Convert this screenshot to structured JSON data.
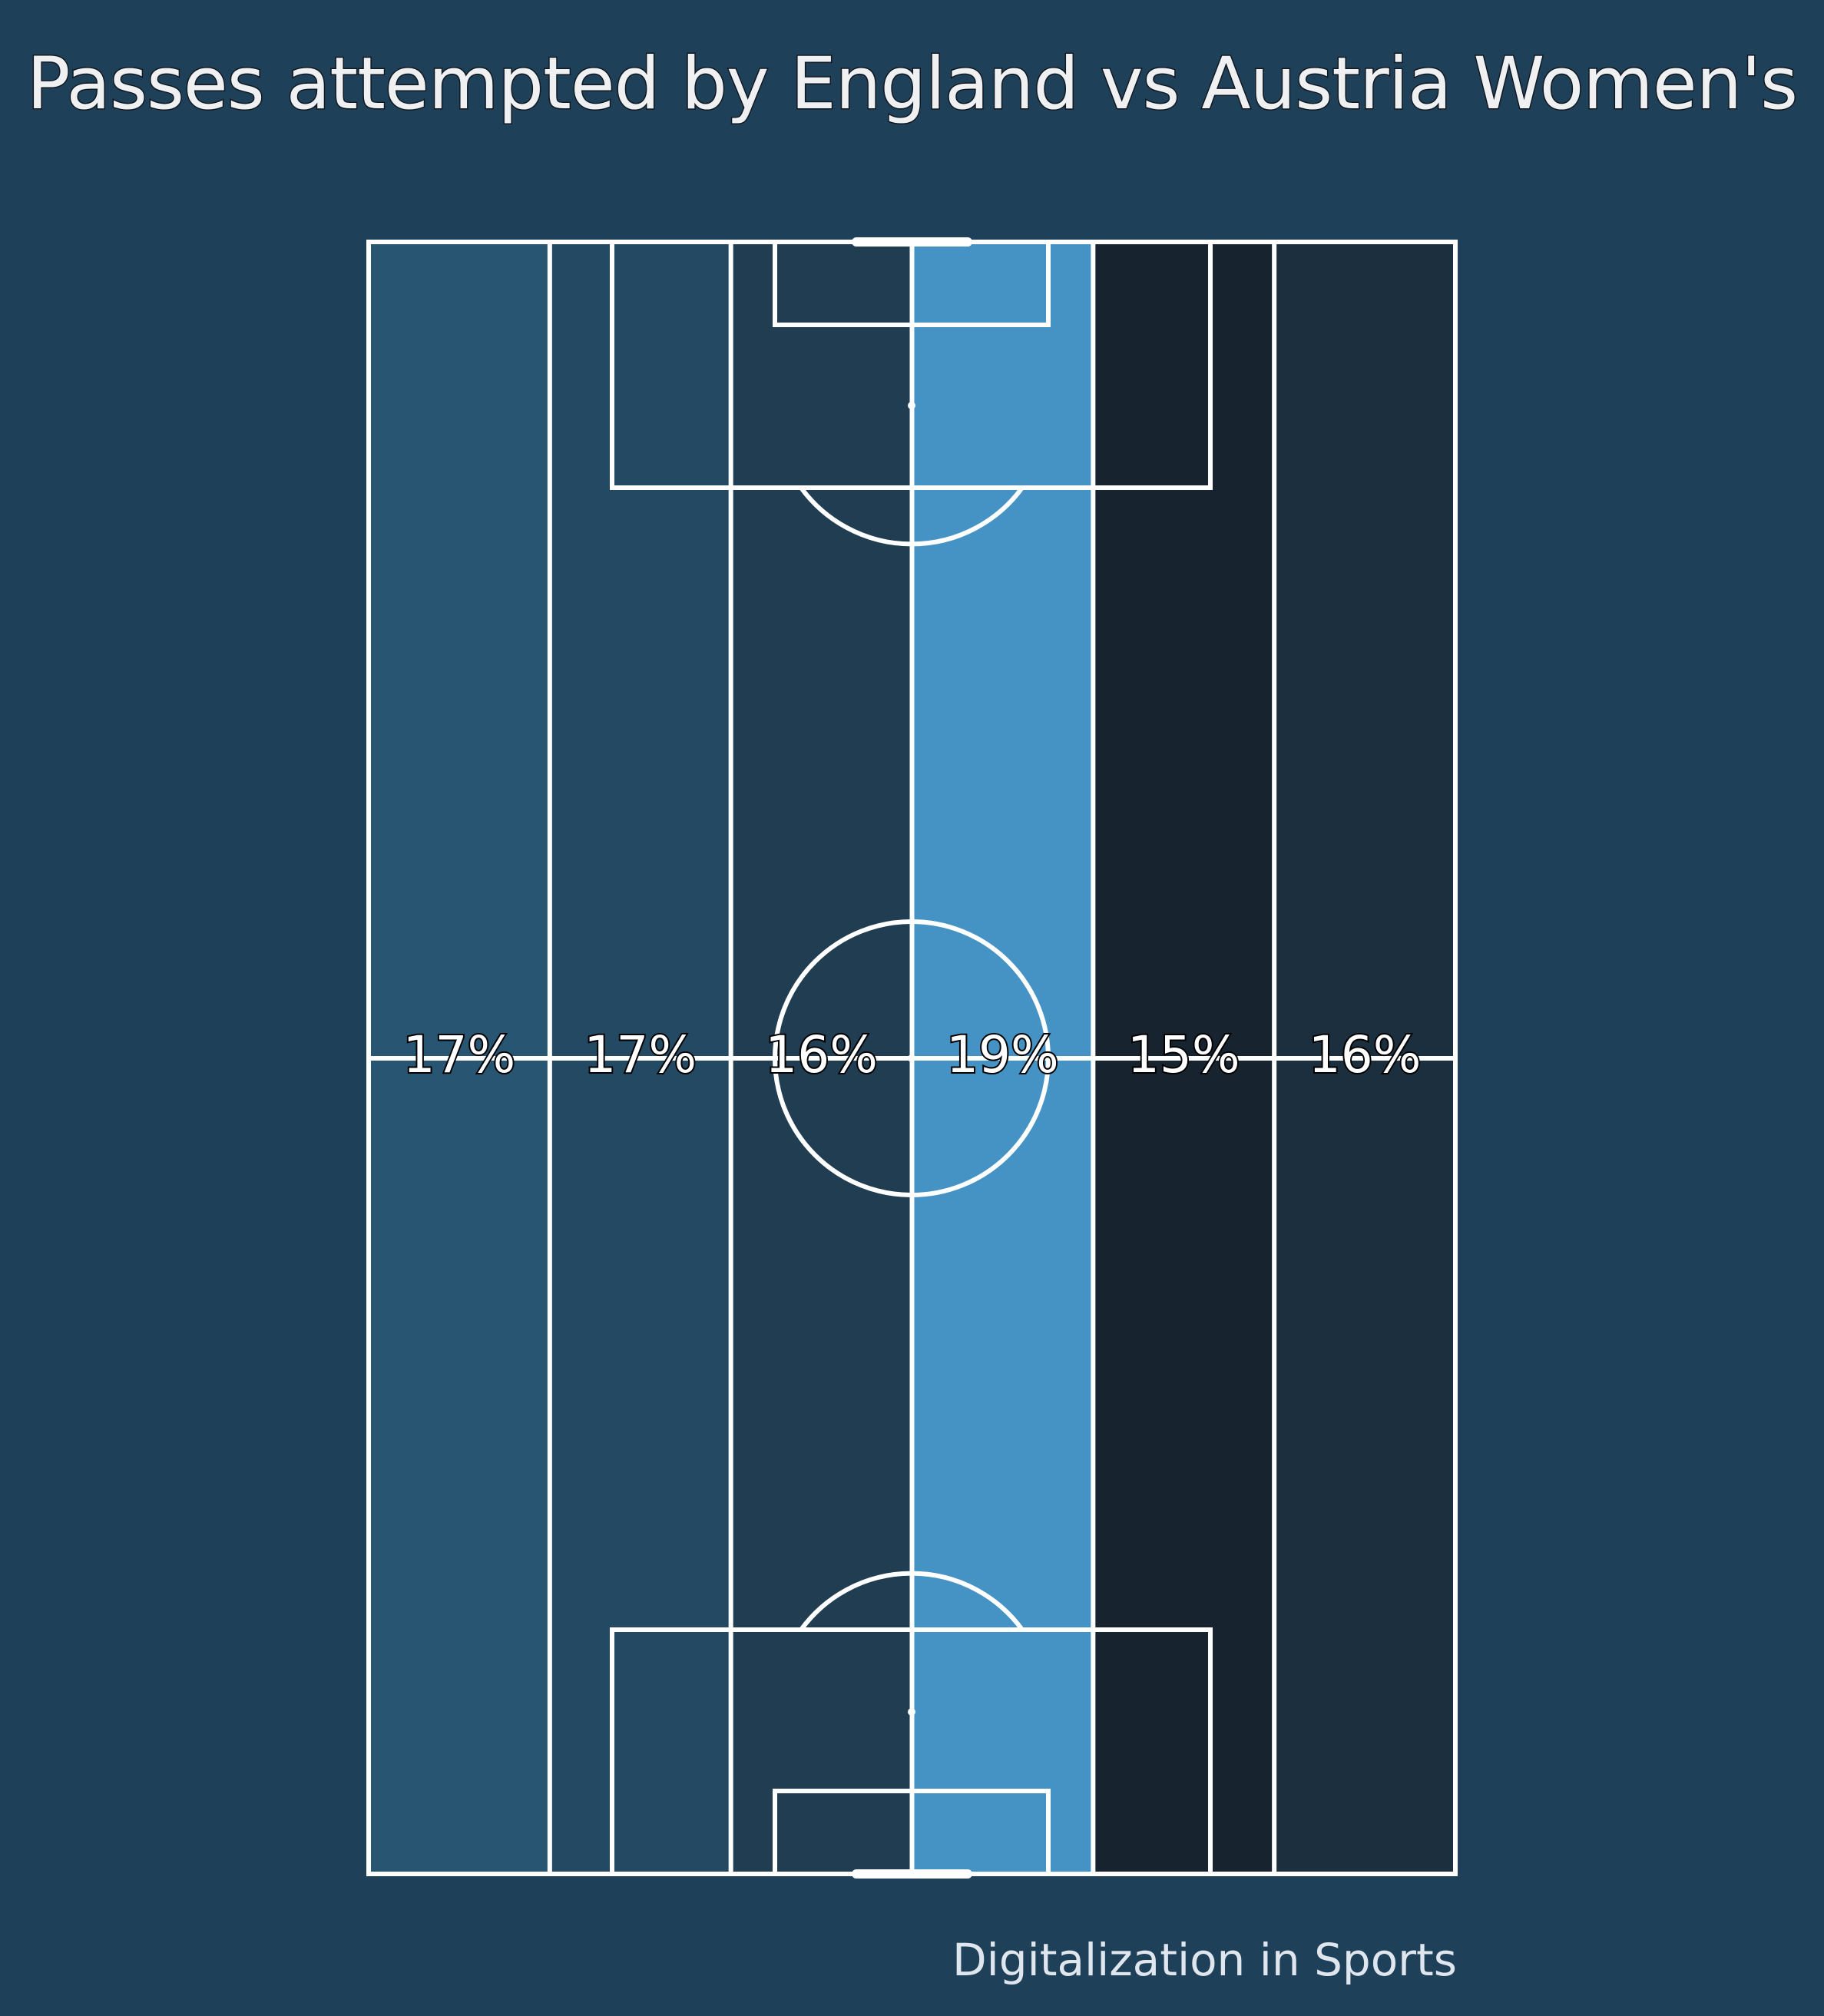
{
  "chart_data": {
    "type": "heatmap",
    "title": "Passes attempted by England vs Austria Women's",
    "zones": [
      {
        "value": 17,
        "label": "17%",
        "color": "#285571"
      },
      {
        "value": 17,
        "label": "17%",
        "color": "#244963"
      },
      {
        "value": 16,
        "label": "16%",
        "color": "#203d51"
      },
      {
        "value": 19,
        "label": "19%",
        "color": "#4593c5"
      },
      {
        "value": 15,
        "label": "15%",
        "color": "#17232f"
      },
      {
        "value": 16,
        "label": "16%",
        "color": "#1c2f3f"
      }
    ],
    "credit": "Digitalization in Sports"
  },
  "colors": {
    "background": "#1f4059",
    "lines": "#ffffff"
  }
}
